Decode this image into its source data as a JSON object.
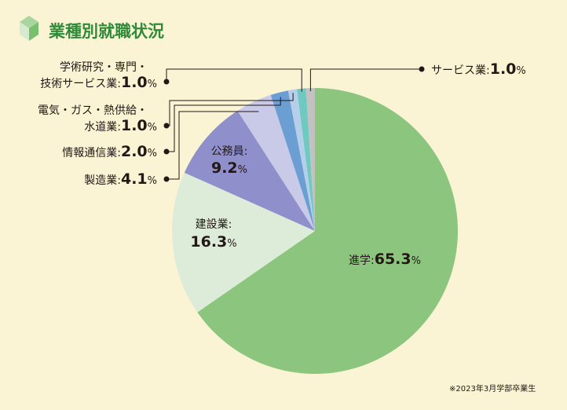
{
  "title": "業種別就職状況",
  "footnote": "※2023年3月学部卒業生",
  "colors": {
    "accent": "#2f8a3a",
    "background": "#faf4d4"
  },
  "chart_data": {
    "type": "pie",
    "title": "業種別就職状況",
    "unit": "%",
    "slices": [
      {
        "label": "進学",
        "value": 65.3,
        "color": "#8cc67e",
        "value_text": "65.3"
      },
      {
        "label": "建設業",
        "value": 16.3,
        "color": "#ddebd9",
        "value_text": "16.3"
      },
      {
        "label": "公務員",
        "value": 9.2,
        "color": "#8e8fcb",
        "value_text": "9.2"
      },
      {
        "label": "製造業",
        "value": 4.1,
        "color": "#c9c9e8",
        "value_text": "4.1"
      },
      {
        "label": "情報通信業",
        "value": 2.0,
        "color": "#6b9fd3",
        "value_text": "2.0"
      },
      {
        "label": "電気・ガス・熱供給・水道業",
        "label_lines": [
          "電気・ガス・熱供給・",
          "水道業"
        ],
        "value": 1.0,
        "color": "#b5cfeb",
        "value_text": "1.0"
      },
      {
        "label": "学術研究・専門・技術サービス業",
        "label_lines": [
          "学術研究・専門・",
          "技術サービス業"
        ],
        "value": 1.0,
        "color": "#6ec9c1",
        "value_text": "1.0"
      },
      {
        "label": "サービス業",
        "value": 1.0,
        "color": "#c2c2c2",
        "value_text": "1.0"
      }
    ]
  }
}
